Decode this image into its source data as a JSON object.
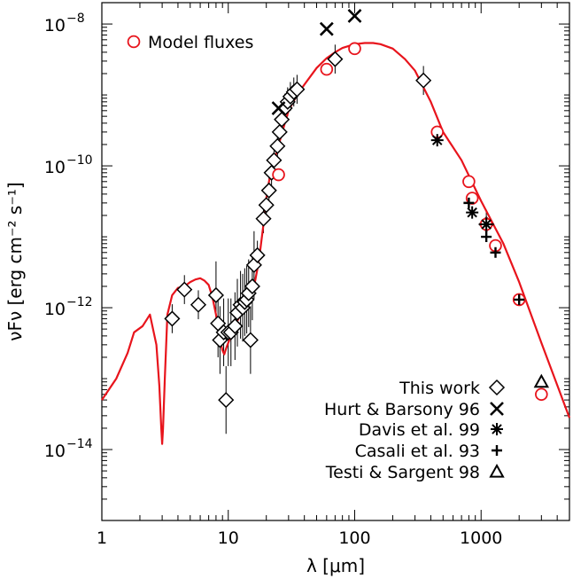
{
  "chart_data": {
    "type": "scatter",
    "xlabel": "λ [μm]",
    "ylabel": "νFν [erg cm⁻² s⁻¹]",
    "x_scale": "log",
    "y_scale": "log",
    "xlim": [
      1,
      5000
    ],
    "ylim": [
      1e-15,
      2e-08
    ],
    "x_ticks": [
      {
        "value": 1,
        "label": "1"
      },
      {
        "value": 10,
        "label": "10"
      },
      {
        "value": 100,
        "label": "100"
      },
      {
        "value": 1000,
        "label": "1000"
      }
    ],
    "y_ticks": [
      {
        "value": 1e-14,
        "base": "10",
        "exp": "−14"
      },
      {
        "value": 1e-12,
        "base": "10",
        "exp": "−12"
      },
      {
        "value": 1e-10,
        "base": "10",
        "exp": "−10"
      },
      {
        "value": 1e-08,
        "base": "10",
        "exp": "−8"
      }
    ],
    "grid": false,
    "legend_position": "bottom-right",
    "colors": {
      "model": "#e8141c",
      "data": "#000000"
    },
    "model_curve": {
      "x": [
        1,
        1.3,
        1.6,
        1.8,
        2.1,
        2.4,
        2.7,
        2.85,
        2.95,
        3.0,
        3.05,
        3.15,
        3.3,
        3.6,
        4,
        4.5,
        5,
        5.5,
        6,
        6.5,
        7,
        7.5,
        8,
        8.5,
        9,
        9.3,
        9.7,
        10.2,
        10.8,
        11.5,
        12.3,
        13,
        14,
        15,
        16,
        17,
        18,
        19,
        20,
        21,
        22,
        24,
        26,
        28,
        30,
        35,
        40,
        50,
        60,
        70,
        80,
        100,
        120,
        140,
        160,
        200,
        250,
        300,
        400,
        500,
        700,
        1000,
        1500,
        2000,
        3000,
        5000
      ],
      "y": [
        5e-14,
        1e-13,
        2.3e-13,
        4.5e-13,
        5.5e-13,
        8e-13,
        3e-13,
        8e-14,
        2e-14,
        1.2e-14,
        2e-14,
        1e-13,
        8e-13,
        1.5e-12,
        1.9e-12,
        2e-12,
        2.3e-12,
        2.5e-12,
        2.6e-12,
        2.4e-12,
        2.1e-12,
        1.4e-12,
        8e-13,
        4e-13,
        2.5e-13,
        2.2e-13,
        2.8e-13,
        3.5e-13,
        4.5e-13,
        6e-13,
        7.5e-13,
        9e-13,
        1.1e-12,
        1.4e-12,
        2e-12,
        3.5e-12,
        7e-12,
        1.5e-11,
        3.5e-11,
        6e-11,
        9e-11,
        1.5e-10,
        2.5e-10,
        4e-10,
        6e-10,
        1e-09,
        1.4e-09,
        2.4e-09,
        3.3e-09,
        4e-09,
        4.6e-09,
        5.2e-09,
        5.4e-09,
        5.4e-09,
        5.2e-09,
        4.5e-09,
        3.2e-09,
        2.2e-09,
        8e-10,
        3e-10,
        1.2e-10,
        3.2e-11,
        8e-12,
        2.3e-12,
        3.2e-13,
        2.8e-14
      ]
    },
    "series": [
      {
        "name": "Model fluxes",
        "marker": "circle",
        "color": "#e8141c",
        "points": [
          [
            60,
            2.3e-09
          ],
          [
            100,
            4.5e-09
          ],
          [
            25,
            7.5e-11
          ],
          [
            450,
            3e-10
          ],
          [
            800,
            6e-11
          ],
          [
            850,
            3.5e-11
          ],
          [
            1100,
            1.5e-11
          ],
          [
            1300,
            7.5e-12
          ],
          [
            2000,
            1.3e-12
          ],
          [
            3000,
            6e-14
          ]
        ]
      },
      {
        "name": "This work",
        "marker": "diamond",
        "color": "#000000",
        "points": [
          [
            3.6,
            7e-13
          ],
          [
            4.5,
            1.8e-12
          ],
          [
            5.8,
            1.1e-12
          ],
          [
            8,
            1.5e-12
          ],
          [
            8.3,
            6e-13
          ],
          [
            8.6,
            3.5e-13
          ],
          [
            9.2,
            4.5e-13
          ],
          [
            9.6,
            5e-14
          ],
          [
            10,
            4.5e-13
          ],
          [
            10.5,
            4.5e-13
          ],
          [
            11.3,
            5.5e-13
          ],
          [
            11.8,
            8.5e-13
          ],
          [
            12.5,
            1.1e-12
          ],
          [
            13,
            1e-12
          ],
          [
            13.5,
            1.2e-12
          ],
          [
            14,
            1.3e-12
          ],
          [
            14.5,
            1.6e-12
          ],
          [
            15,
            3.5e-13
          ],
          [
            15.5,
            2e-12
          ],
          [
            16,
            4e-12
          ],
          [
            17,
            5.5e-12
          ],
          [
            19,
            1.8e-11
          ],
          [
            20,
            2.8e-11
          ],
          [
            21,
            4.5e-11
          ],
          [
            22,
            8e-11
          ],
          [
            23,
            1.2e-10
          ],
          [
            24.5,
            1.9e-10
          ],
          [
            25.5,
            3e-10
          ],
          [
            26.5,
            4.5e-10
          ],
          [
            28,
            6.5e-10
          ],
          [
            29.5,
            8e-10
          ],
          [
            31,
            9.5e-10
          ],
          [
            33,
            1.1e-09
          ],
          [
            35,
            1.2e-09
          ],
          [
            70,
            3.2e-09
          ],
          [
            350,
            1.6e-09
          ],
          [
            1100,
            1.5e-11
          ]
        ]
      },
      {
        "name": "Hurt & Barsony 96",
        "marker": "x",
        "color": "#000000",
        "points": [
          [
            25,
            6.5e-10
          ],
          [
            60,
            8.5e-09
          ],
          [
            100,
            1.3e-08
          ]
        ]
      },
      {
        "name": "Davis et al. 99",
        "marker": "asterisk",
        "color": "#000000",
        "points": [
          [
            450,
            2.3e-10
          ],
          [
            850,
            2.2e-11
          ],
          [
            1100,
            1.5e-11
          ]
        ]
      },
      {
        "name": "Casali et al. 93",
        "marker": "plus",
        "color": "#000000",
        "points": [
          [
            800,
            3e-11
          ],
          [
            1100,
            1e-11
          ],
          [
            1300,
            6e-12
          ],
          [
            2000,
            1.3e-12
          ]
        ]
      },
      {
        "name": "Testi & Sargent 98",
        "marker": "triangle",
        "color": "#000000",
        "points": [
          [
            3000,
            9e-14
          ]
        ]
      }
    ]
  }
}
